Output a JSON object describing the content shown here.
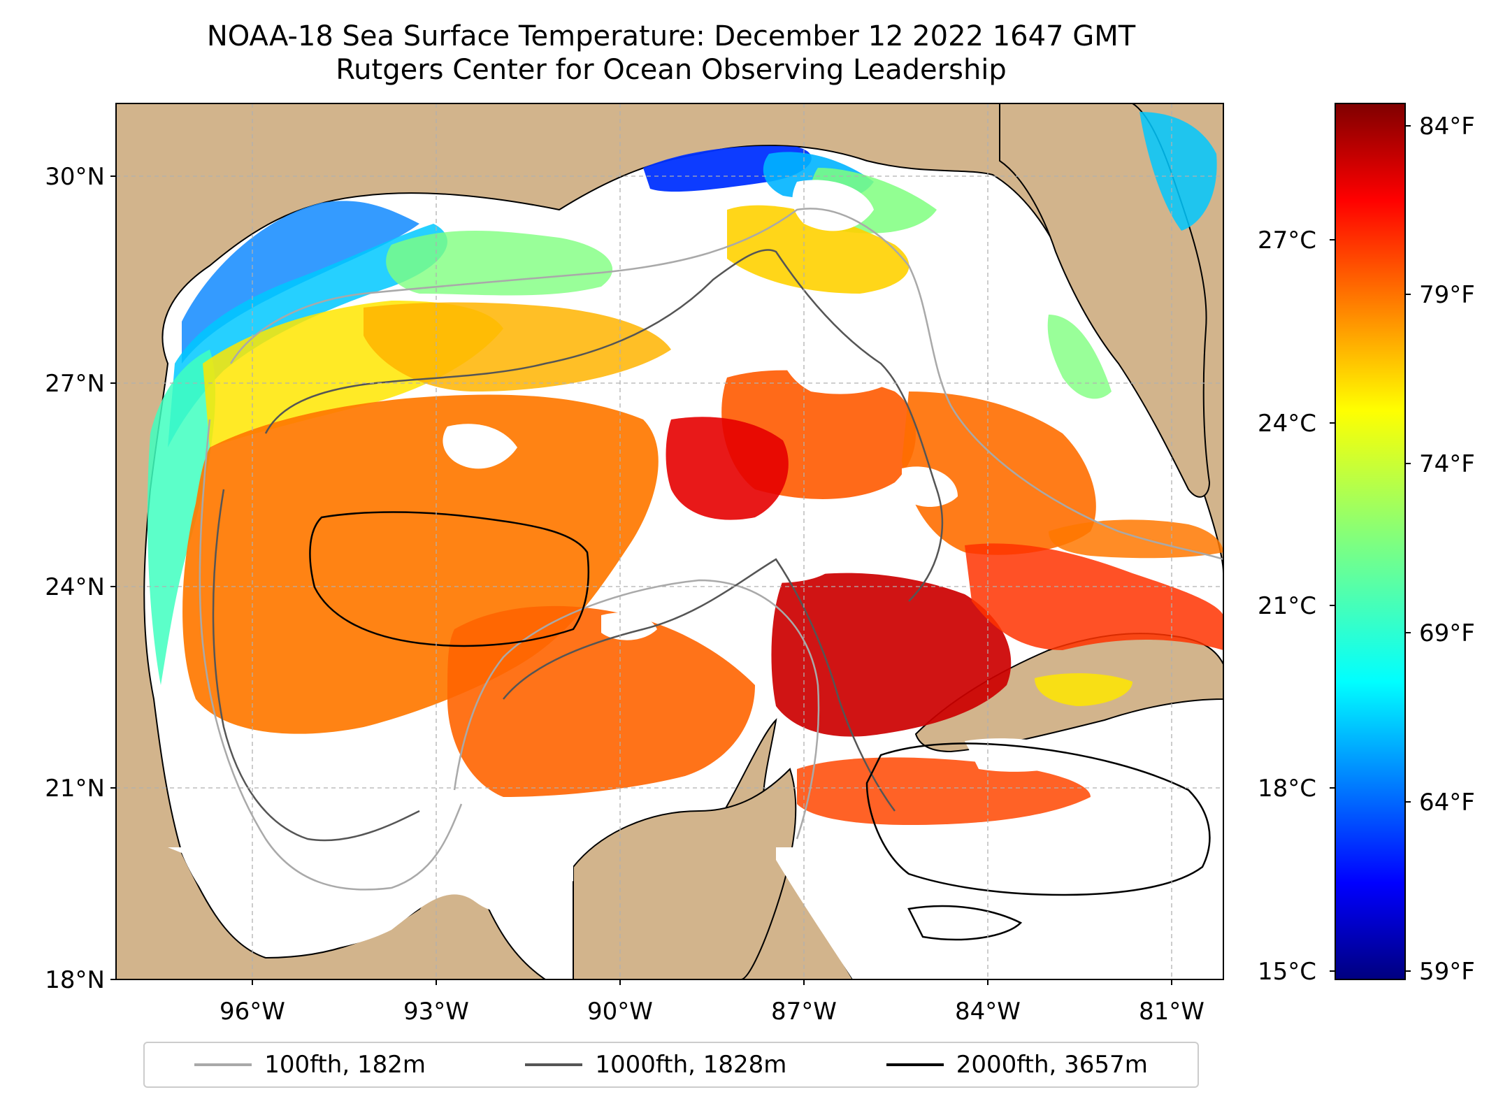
{
  "title": {
    "line1": "NOAA-18 Sea Surface Temperature: December 12 2022 1647 GMT",
    "line2": "Rutgers Center for Ocean Observing Leadership"
  },
  "map": {
    "land_color": "#d2b48c",
    "no_data_color": "#ffffff",
    "lat_ticks": [
      "18°N",
      "21°N",
      "24°N",
      "27°N",
      "30°N"
    ],
    "lon_ticks": [
      "96°W",
      "93°W",
      "90°W",
      "87°W",
      "84°W",
      "81°W"
    ]
  },
  "colorbar": {
    "colormap": "jet",
    "celsius_ticks": [
      "15°C",
      "18°C",
      "21°C",
      "24°C",
      "27°C"
    ],
    "fahrenheit_ticks": [
      "59°F",
      "64°F",
      "69°F",
      "74°F",
      "79°F",
      "84°F"
    ]
  },
  "legend": {
    "items": [
      {
        "label": "100fth, 182m",
        "color": "#a9a9a9"
      },
      {
        "label": "1000fth, 1828m",
        "color": "#555555"
      },
      {
        "label": "2000fth, 3657m",
        "color": "#000000"
      }
    ]
  }
}
